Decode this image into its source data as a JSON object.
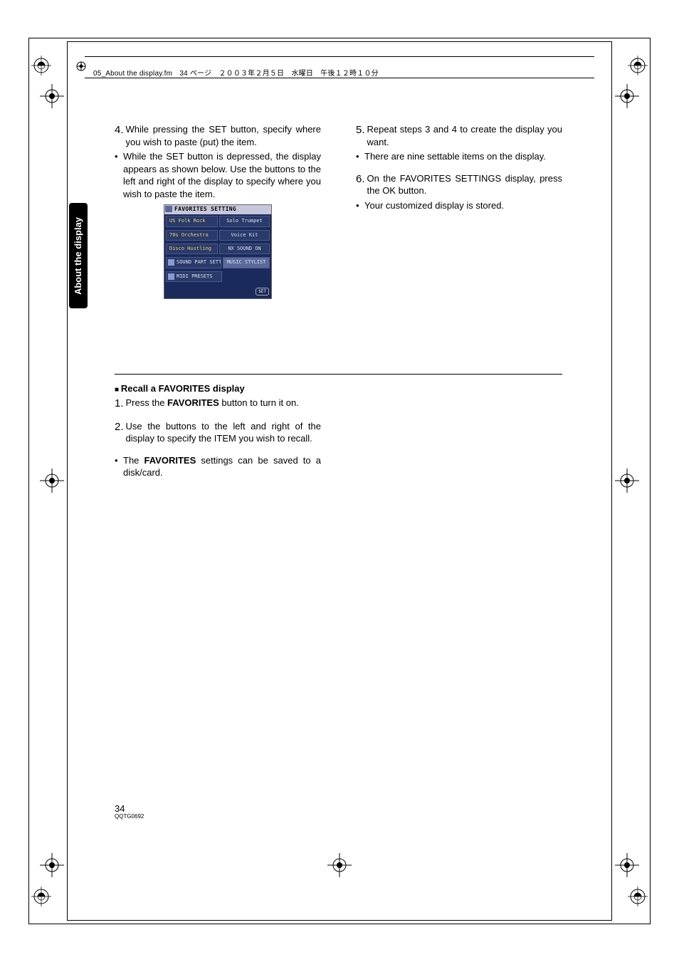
{
  "header": {
    "running_head": "05_About the display.fm　34 ページ　２００３年２月５日　水曜日　午後１２時１０分"
  },
  "sidebar": {
    "label": "About the display"
  },
  "left_col": {
    "step4_num": "4.",
    "step4_text": "While pressing the SET button, specify where you wish to paste (put) the item.",
    "bullet1": "While the SET button is depressed, the display appears as shown below. Use the buttons to the left and right of the display to specify where you wish to paste the item."
  },
  "screen": {
    "title": "FAVORITES SETTING",
    "rows": [
      {
        "left": "US Folk Rock",
        "right": "Solo Trumpet",
        "left_class": "left yellow",
        "right_class": ""
      },
      {
        "left": "70s Orchestra",
        "right": "Voice Kit",
        "left_class": "left yellow",
        "right_class": ""
      },
      {
        "left": "Disco Hustling",
        "right": "NX SOUND ON",
        "left_class": "left yellow",
        "right_class": ""
      },
      {
        "left": "SOUND PART SETTING",
        "right": "MUSIC STYLIST",
        "left_class": "icon",
        "right_class": "stylist"
      },
      {
        "left": "MIDI PRESETS",
        "right": "",
        "left_class": "icon",
        "right_class": "empty"
      }
    ],
    "set_label": "SET"
  },
  "right_col": {
    "step5_num": "5.",
    "step5_text": "Repeat steps 3 and 4 to create the display you want.",
    "bullet5": "There are nine settable items on the display.",
    "step6_num": "6.",
    "step6_text": "On the FAVORITES SETTINGS display, press the OK button.",
    "bullet6": "Your customized display is stored."
  },
  "lower": {
    "heading": "Recall a FAVORITES display",
    "step1_num": "1.",
    "step1_pre": "Press the ",
    "step1_bold": "FAVORITES",
    "step1_post": " button to turn it on.",
    "step2_num": "2.",
    "step2_text": "Use the buttons to the left and right of the display to specify the ITEM you wish to recall.",
    "bullet_pre": "The ",
    "bullet_bold": "FAVORITES",
    "bullet_post": " settings can be saved to a disk/card."
  },
  "footer": {
    "page": "34",
    "code": "QQTG0692"
  },
  "colors": {
    "text": "#000000",
    "bg": "#ffffff"
  }
}
